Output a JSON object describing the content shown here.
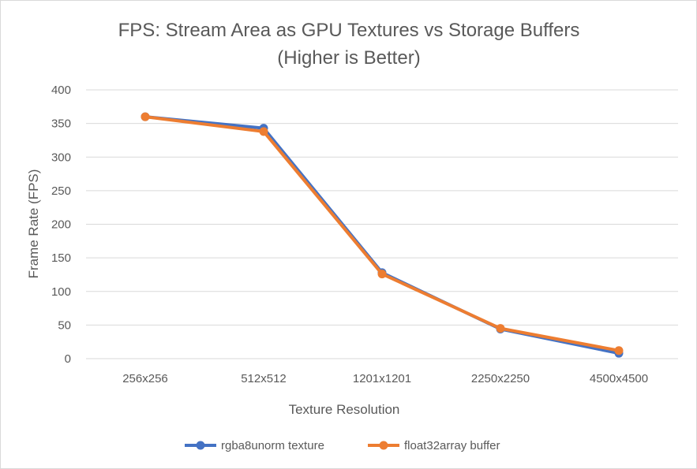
{
  "chart_data": {
    "type": "line",
    "title_line1": "FPS: Stream Area as GPU Textures vs Storage Buffers",
    "title_line2": "(Higher is Better)",
    "xlabel": "Texture Resolution",
    "ylabel": "Frame Rate (FPS)",
    "categories": [
      "256x256",
      "512x512",
      "1201x1201",
      "2250x2250",
      "4500x4500"
    ],
    "ylim": [
      0,
      400
    ],
    "yticks": [
      0,
      50,
      100,
      150,
      200,
      250,
      300,
      350,
      400
    ],
    "grid": true,
    "legend_position": "bottom",
    "series": [
      {
        "name": "rgba8unorm texture",
        "color": "#4472c4",
        "values": [
          360,
          343,
          128,
          44,
          8
        ]
      },
      {
        "name": "float32array buffer",
        "color": "#ed7d31",
        "values": [
          360,
          338,
          126,
          45,
          12
        ]
      }
    ]
  }
}
